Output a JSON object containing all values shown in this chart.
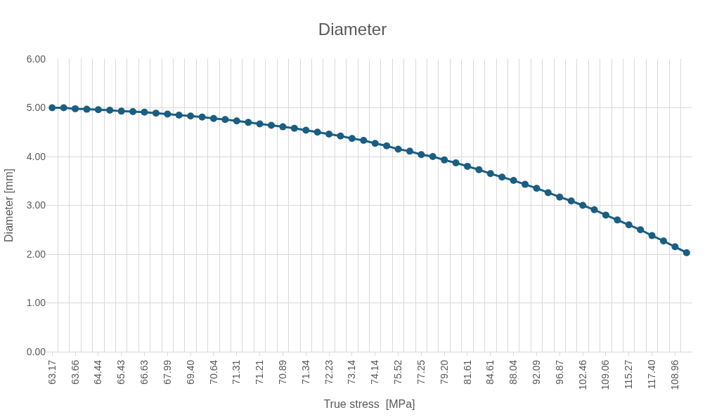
{
  "chart_data": {
    "type": "line",
    "title": "Diameter",
    "xlabel": "True stress  [MPa]",
    "ylabel": "Diameter [mm]",
    "categories": [
      "63.17",
      null,
      "63.66",
      null,
      "64.44",
      null,
      "65.43",
      null,
      "66.63",
      null,
      "67.99",
      null,
      "69.40",
      null,
      "70.64",
      null,
      "71.31",
      null,
      "71.21",
      null,
      "70.89",
      null,
      "71.34",
      null,
      "72.23",
      null,
      "73.14",
      null,
      "74.14",
      null,
      "75.52",
      null,
      "77.25",
      null,
      "79.20",
      null,
      "81.61",
      null,
      "84.61",
      null,
      "88.04",
      null,
      "92.09",
      null,
      "96.87",
      null,
      "102.46",
      null,
      "109.06",
      null,
      "115.27",
      null,
      "117.40",
      null,
      "108.96",
      null
    ],
    "series": [
      {
        "color": "#1a5e82",
        "values": [
          5.0,
          5.0,
          4.98,
          4.97,
          4.96,
          4.95,
          4.93,
          4.92,
          4.91,
          4.89,
          4.87,
          4.85,
          4.83,
          4.81,
          4.78,
          4.76,
          4.73,
          4.7,
          4.67,
          4.64,
          4.61,
          4.58,
          4.54,
          4.5,
          4.46,
          4.42,
          4.37,
          4.33,
          4.27,
          4.22,
          4.15,
          4.11,
          4.04,
          4.0,
          3.93,
          3.87,
          3.8,
          3.73,
          3.65,
          3.58,
          3.51,
          3.43,
          3.35,
          3.26,
          3.17,
          3.09,
          3.0,
          2.91,
          2.8,
          2.7,
          2.6,
          2.5,
          2.38,
          2.27,
          2.15,
          2.03
        ]
      }
    ],
    "ylim": [
      0,
      6
    ],
    "yticks": [
      {
        "value": 0,
        "label": "0.00"
      },
      {
        "value": 1,
        "label": "1.00"
      },
      {
        "value": 2,
        "label": "2.00"
      },
      {
        "value": 3,
        "label": "3.00"
      },
      {
        "value": 4,
        "label": "4.00"
      },
      {
        "value": 5,
        "label": "5.00"
      },
      {
        "value": 6,
        "label": "6.00"
      }
    ],
    "grid": true,
    "marker": "circle",
    "line_style": "solid"
  }
}
